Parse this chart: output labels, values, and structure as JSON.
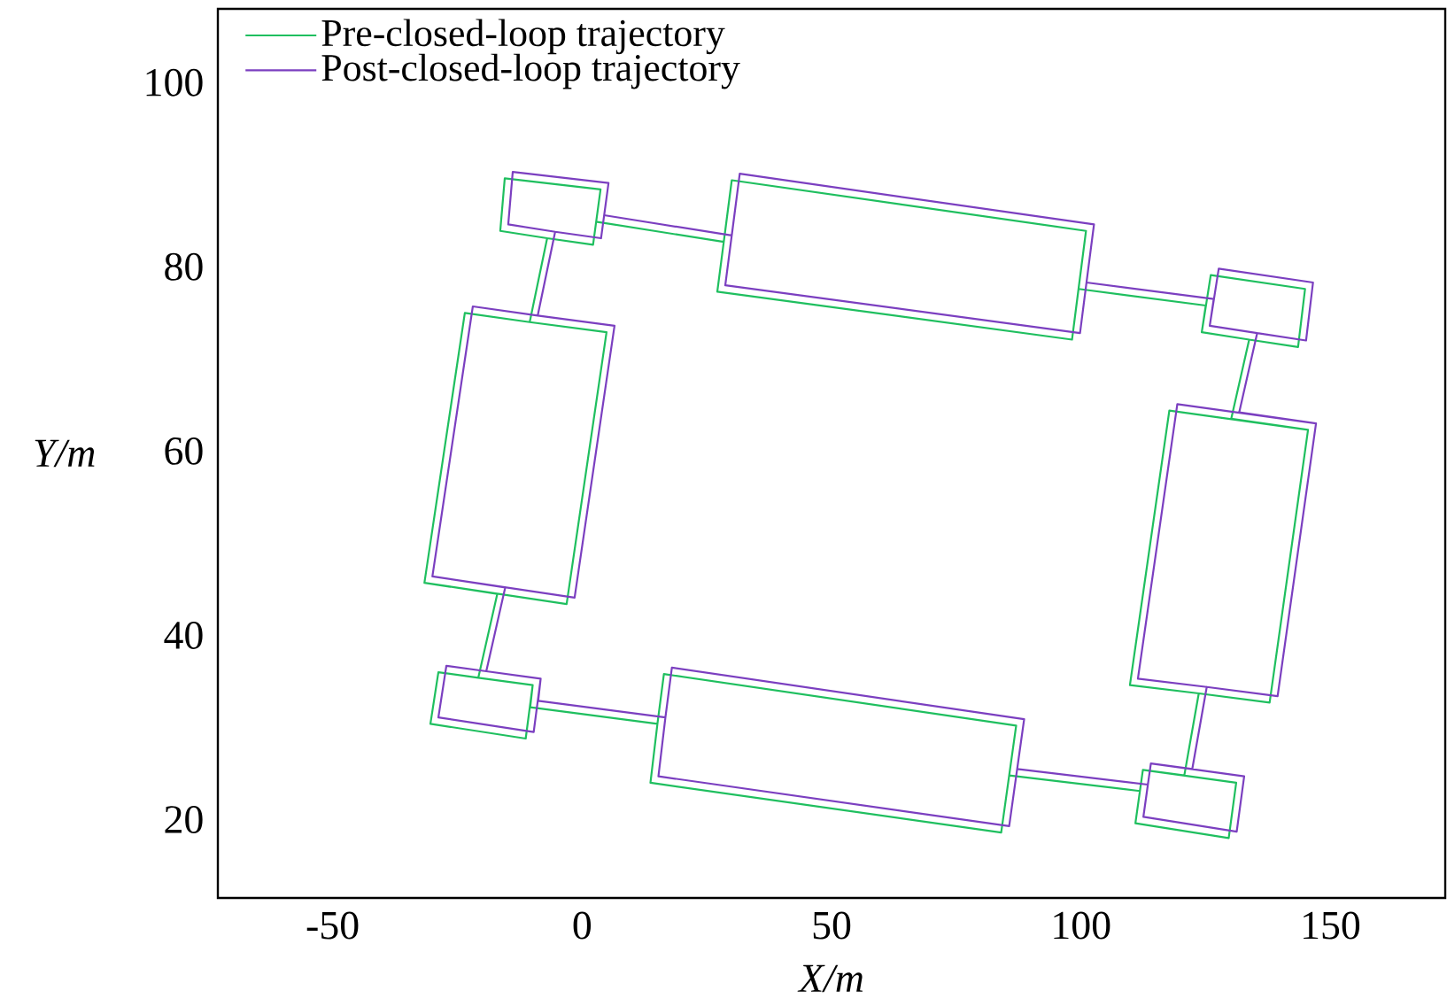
{
  "chart_data": {
    "type": "line",
    "xlabel": "X/m",
    "ylabel": "Y/m",
    "xlim": [
      -73,
      173
    ],
    "ylim": [
      11.5,
      108
    ],
    "xticks": [
      -50,
      0,
      50,
      100,
      150
    ],
    "yticks": [
      20,
      40,
      60,
      80,
      100
    ],
    "grid": false,
    "legend": "top left",
    "line_style": "solid",
    "series": [
      {
        "name": "Pre-closed-loop trajectory",
        "color": "#1fbf5f",
        "x": [
          -7.0,
          2.2,
          3.7,
          -15.5,
          -16.4,
          -7.0,
          -10.5,
          -23.5,
          -31.6,
          -3.1,
          4.9,
          -10.5,
          -23.5,
          -31.6,
          -17.0,
          -20.8,
          -9.9,
          -11.3,
          -30.4,
          -28.8,
          -20.8,
          -9.9,
          -10.4,
          15.1,
          16.4,
          87.0,
          84.0,
          13.7,
          15.1,
          16.4,
          87.0,
          85.6,
          111.8,
          112.4,
          131.1,
          129.6,
          110.9,
          111.8,
          112.4,
          120.7,
          123.6,
          137.8,
          145.5,
          117.7,
          109.8,
          123.6,
          137.8,
          145.5,
          130.1,
          133.7,
          143.5,
          144.9,
          126.0,
          124.2,
          133.7,
          124.2,
          125.0,
          99.5,
          101.0,
          30.0,
          27.1,
          98.2,
          99.5,
          101.0,
          30.0,
          28.4,
          2.8
        ],
        "values": [
          83.1,
          82.4,
          88.4,
          89.6,
          83.9,
          83.1,
          74.0,
          75.0,
          45.7,
          43.4,
          72.9,
          74.0,
          75.0,
          45.7,
          44.5,
          35.4,
          34.6,
          28.8,
          30.4,
          36.0,
          35.4,
          34.6,
          32.2,
          30.4,
          35.8,
          30.2,
          18.6,
          24.0,
          30.4,
          35.8,
          30.2,
          24.8,
          23.1,
          25.4,
          24.0,
          18.0,
          19.6,
          23.1,
          25.4,
          24.8,
          33.7,
          32.7,
          62.3,
          64.4,
          34.6,
          33.7,
          32.7,
          62.3,
          63.5,
          72.1,
          71.3,
          77.6,
          79.1,
          72.9,
          72.1,
          72.9,
          75.8,
          77.6,
          83.9,
          89.4,
          77.3,
          72.1,
          77.6,
          83.9,
          89.4,
          82.7,
          84.9
        ]
      },
      {
        "name": "Post-closed-loop trajectory",
        "color": "#7b3fc0",
        "x": [
          -5.4,
          3.8,
          5.3,
          -13.9,
          -14.8,
          -5.4,
          -8.9,
          -21.9,
          -30.0,
          -1.5,
          6.5,
          -8.9,
          -21.9,
          -30.0,
          -15.4,
          -19.2,
          -8.3,
          -9.7,
          -28.8,
          -27.2,
          -19.2,
          -8.3,
          -8.8,
          16.7,
          18.0,
          88.6,
          85.6,
          15.3,
          16.7,
          18.0,
          88.6,
          87.2,
          113.4,
          114.0,
          132.7,
          131.2,
          112.5,
          113.4,
          114.0,
          122.3,
          125.2,
          139.4,
          147.1,
          119.3,
          111.4,
          125.2,
          139.4,
          147.1,
          131.7,
          135.3,
          145.1,
          146.5,
          127.6,
          125.8,
          135.3,
          125.8,
          126.6,
          101.1,
          102.6,
          31.6,
          28.7,
          99.8,
          101.1,
          102.6,
          31.6,
          30.0,
          4.4
        ],
        "values": [
          83.8,
          83.1,
          89.1,
          90.3,
          84.6,
          83.8,
          74.7,
          75.7,
          46.4,
          44.1,
          73.6,
          74.7,
          75.7,
          46.4,
          45.2,
          36.1,
          35.3,
          29.5,
          31.1,
          36.7,
          36.1,
          35.3,
          32.9,
          31.1,
          36.5,
          30.9,
          19.3,
          24.7,
          31.1,
          36.5,
          30.9,
          25.5,
          23.8,
          26.1,
          24.7,
          18.7,
          20.3,
          23.8,
          26.1,
          25.5,
          34.4,
          33.4,
          63.0,
          65.1,
          35.3,
          34.4,
          33.4,
          63.0,
          64.2,
          72.8,
          72.0,
          78.3,
          79.8,
          73.6,
          72.8,
          73.6,
          76.5,
          78.3,
          84.6,
          90.1,
          78.0,
          72.8,
          78.3,
          84.6,
          90.1,
          83.4,
          85.6
        ]
      }
    ]
  }
}
